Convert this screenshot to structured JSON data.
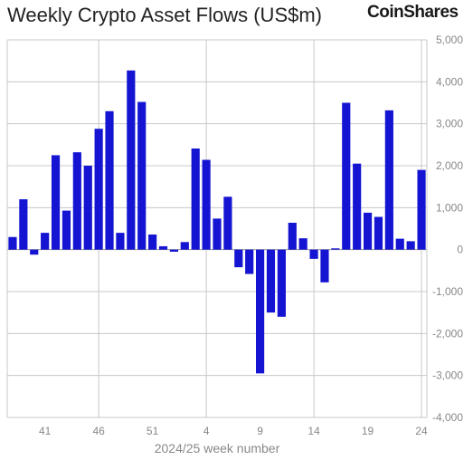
{
  "header": {
    "title": "Weekly Crypto Asset Flows (US$m)",
    "brand": "CoinShares"
  },
  "colors": {
    "bar": "#1414d2",
    "grid": "#c8c8c8",
    "zero_line": "#999999",
    "tick_text": "#888888"
  },
  "chart_data": {
    "type": "bar",
    "title": "Weekly Crypto Asset Flows (US$m)",
    "xlabel": "2024/25 week number",
    "ylabel": "",
    "ylim": [
      -4000,
      5000
    ],
    "y_ticks": [
      5000,
      4000,
      3000,
      2000,
      1000,
      0,
      -1000,
      -2000,
      -3000,
      -4000
    ],
    "y_tick_labels": [
      "5,000",
      "4,000",
      "3,000",
      "2,000",
      "1,000",
      "0",
      "-1,000",
      "-2,000",
      "-3,000",
      "-4,000"
    ],
    "x_tick_labels": [
      "41",
      "46",
      "51",
      "4",
      "9",
      "14",
      "19",
      "24"
    ],
    "x_tick_bar_index": [
      3,
      8,
      13,
      18,
      23,
      28,
      33,
      38
    ],
    "x_gridline_bar_index": [
      8,
      18,
      28,
      38
    ],
    "grid": true,
    "categories": [
      "38",
      "39",
      "40",
      "41",
      "42",
      "43",
      "44",
      "45",
      "46",
      "47",
      "48",
      "49",
      "50",
      "51",
      "52",
      "1",
      "2",
      "3",
      "4",
      "5",
      "6",
      "7",
      "8",
      "9",
      "10",
      "11",
      "12",
      "13",
      "14",
      "15",
      "16",
      "17",
      "18",
      "19",
      "20",
      "21",
      "22",
      "23",
      "24"
    ],
    "values": [
      300,
      1200,
      -120,
      400,
      2250,
      930,
      2320,
      2000,
      2880,
      3300,
      400,
      4270,
      3520,
      360,
      80,
      -50,
      180,
      2410,
      2140,
      740,
      1260,
      -420,
      -580,
      -2950,
      -1500,
      -1600,
      640,
      270,
      -220,
      -780,
      30,
      3500,
      2050,
      880,
      780,
      3320,
      260,
      200,
      1900
    ]
  }
}
